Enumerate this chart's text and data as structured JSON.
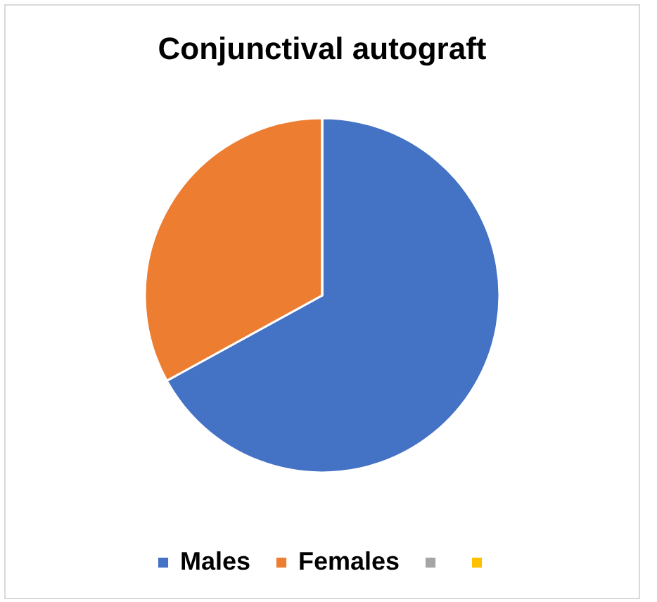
{
  "chart_data": {
    "type": "pie",
    "title": "Conjunctival autograft",
    "categories": [
      "Males",
      "Females",
      null,
      null
    ],
    "values": [
      67,
      33,
      0,
      0
    ],
    "colors": [
      "#4472c4",
      "#ed7d31",
      "#a5a5a5",
      "#ffc000"
    ],
    "legend": "bottom"
  }
}
